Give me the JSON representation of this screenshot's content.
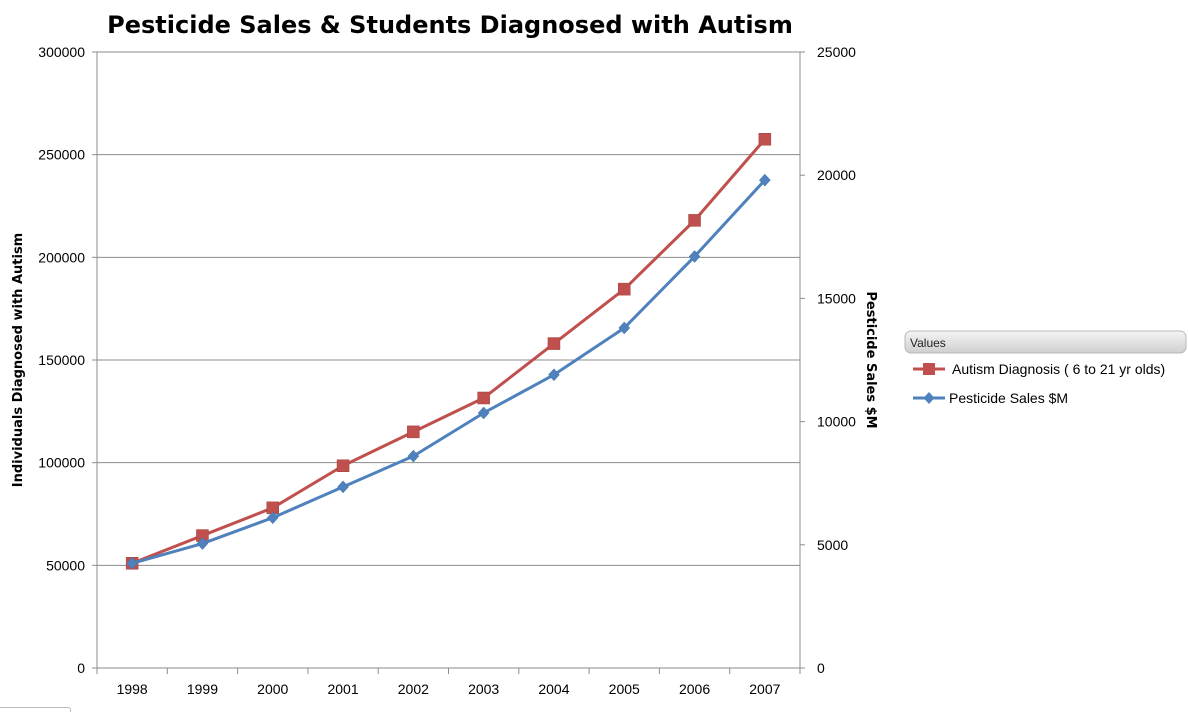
{
  "chart_data": {
    "type": "line",
    "title": "Pesticide Sales & Students Diagnosed with Autism",
    "categories": [
      "1998",
      "1999",
      "2000",
      "2001",
      "2002",
      "2003",
      "2004",
      "2005",
      "2006",
      "2007"
    ],
    "series": [
      {
        "name": "Autism Diagnosis ( 6 to 21 yr olds)",
        "axis": "left",
        "color": "#c0504d",
        "marker": "square",
        "values": [
          51000,
          64500,
          78000,
          98500,
          115000,
          131500,
          158000,
          184500,
          218000,
          257500
        ]
      },
      {
        "name": "Pesticide Sales $M",
        "axis": "right",
        "color": "#4f81bd",
        "marker": "diamond",
        "values": [
          4250,
          5050,
          6100,
          7350,
          8600,
          10350,
          11900,
          13800,
          16700,
          19800
        ]
      }
    ],
    "ylabel": "Individuals Diagnosed with Autism",
    "y2label": "Pesticide Sales $M",
    "ylim": [
      0,
      300000
    ],
    "y2lim": [
      0,
      25000
    ],
    "yticks": [
      "0",
      "50000",
      "100000",
      "150000",
      "200000",
      "250000",
      "300000"
    ],
    "y2ticks": [
      "0",
      "5000",
      "10000",
      "15000",
      "20000",
      "25000"
    ],
    "grid": true,
    "legend": {
      "title": "Values",
      "position": "right"
    }
  }
}
